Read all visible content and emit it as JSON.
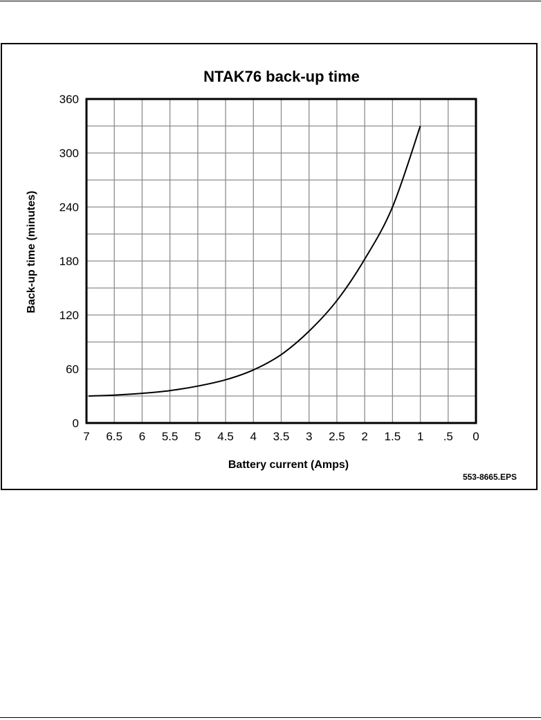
{
  "chart_data": {
    "type": "line",
    "title": "NTAK76 back-up time",
    "xlabel": "Battery current (Amps)",
    "ylabel": "Back-up time (minutes)",
    "xlim": [
      7,
      0
    ],
    "ylim": [
      0,
      360
    ],
    "x_ticks": [
      "7",
      "6.5",
      "6",
      "5.5",
      "5",
      "4.5",
      "4",
      "3.5",
      "3",
      "2.5",
      "2",
      "1.5",
      "1",
      ".5",
      "0"
    ],
    "y_ticks": [
      "0",
      "60",
      "120",
      "180",
      "240",
      "300",
      "360"
    ],
    "grid": true,
    "series": [
      {
        "x": [
          6.96,
          6.5,
          6.0,
          5.5,
          5.0,
          4.5,
          4.0,
          3.5,
          3.0,
          2.5,
          2.0,
          1.5,
          1.0
        ],
        "y": [
          30,
          31,
          33,
          36,
          41,
          48,
          59,
          76,
          102,
          136,
          182,
          240,
          330
        ]
      }
    ],
    "figure_ref": "553-8665.EPS"
  }
}
